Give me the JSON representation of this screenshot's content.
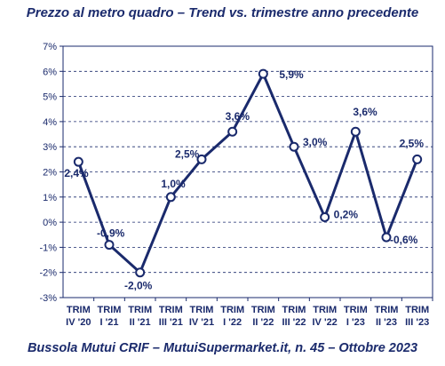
{
  "title": "Prezzo al metro quadro – Trend vs. trimestre anno precedente",
  "source": "Bussola Mutui CRIF – MutuiSupermarket.it, n. 45 – Ottobre 2023",
  "chart_data": {
    "type": "line",
    "categories": [
      [
        "TRIM",
        "IV '20"
      ],
      [
        "TRIM",
        "I '21"
      ],
      [
        "TRIM",
        "II '21"
      ],
      [
        "TRIM",
        "III '21"
      ],
      [
        "TRIM",
        "IV '21"
      ],
      [
        "TRIM",
        "I '22"
      ],
      [
        "TRIM",
        "II '22"
      ],
      [
        "TRIM",
        "III '22"
      ],
      [
        "TRIM",
        "IV '22"
      ],
      [
        "TRIM",
        "I '23"
      ],
      [
        "TRIM",
        "II '23"
      ],
      [
        "TRIM",
        "III '23"
      ]
    ],
    "series": [
      {
        "values": [
          2.4,
          -0.9,
          -2.0,
          1.0,
          2.5,
          3.6,
          5.9,
          3.0,
          0.2,
          3.6,
          -0.6,
          2.5
        ],
        "labels": [
          "2,4%",
          "-0,9%",
          "-2,0%",
          "1,0%",
          "2,5%",
          "3,6%",
          "5,9%",
          "3,0%",
          "0,2%",
          "3,6%",
          "-0,6%",
          "2,5%"
        ],
        "color": "#1a2a6c"
      }
    ],
    "ylim": [
      -3,
      7
    ],
    "yticks": [
      "-3%",
      "-2%",
      "-1%",
      "0%",
      "1%",
      "2%",
      "3%",
      "4%",
      "5%",
      "6%",
      "7%"
    ],
    "grid": true,
    "xlabel": "",
    "ylabel": ""
  }
}
